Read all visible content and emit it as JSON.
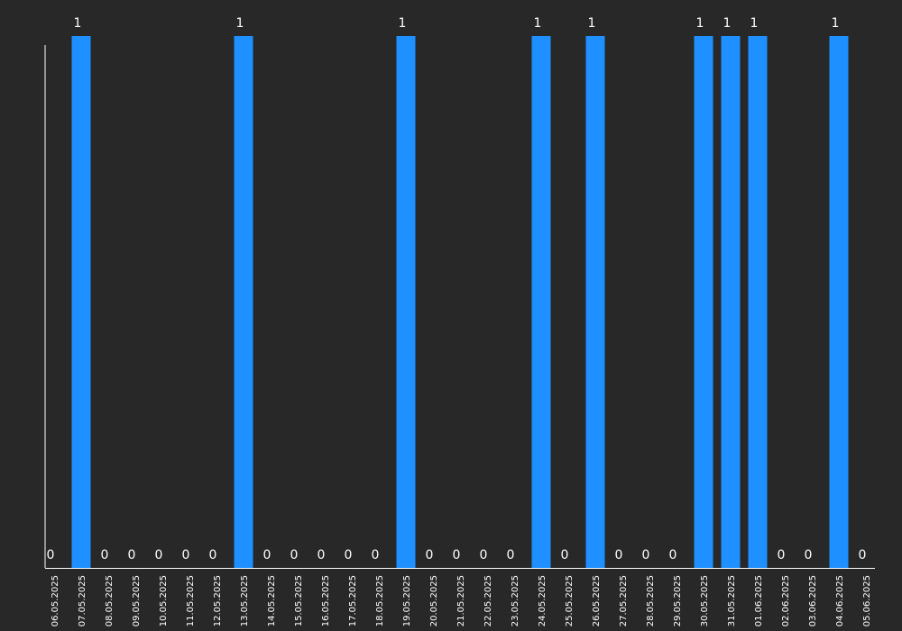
{
  "colors": {
    "background": "#282828",
    "bar": "#1e90ff",
    "axis": "#ffffff",
    "text": "#ffffff"
  },
  "chart_data": {
    "type": "bar",
    "title": "",
    "xlabel": "",
    "ylabel": "",
    "ylim": [
      0,
      1
    ],
    "grid": false,
    "legend": "none",
    "data_labels": true,
    "categories": [
      "06.05.2025",
      "07.05.2025",
      "08.05.2025",
      "09.05.2025",
      "10.05.2025",
      "11.05.2025",
      "12.05.2025",
      "13.05.2025",
      "14.05.2025",
      "15.05.2025",
      "16.05.2025",
      "17.05.2025",
      "18.05.2025",
      "19.05.2025",
      "20.05.2025",
      "21.05.2025",
      "22.05.2025",
      "23.05.2025",
      "24.05.2025",
      "25.05.2025",
      "26.05.2025",
      "27.05.2025",
      "28.05.2025",
      "29.05.2025",
      "30.05.2025",
      "31.05.2025",
      "01.06.2025",
      "02.06.2025",
      "03.06.2025",
      "04.06.2025",
      "05.06.2025"
    ],
    "values": [
      0,
      1,
      0,
      0,
      0,
      0,
      0,
      1,
      0,
      0,
      0,
      0,
      0,
      1,
      0,
      0,
      0,
      0,
      1,
      0,
      1,
      0,
      0,
      0,
      1,
      1,
      1,
      0,
      0,
      1,
      0
    ]
  }
}
